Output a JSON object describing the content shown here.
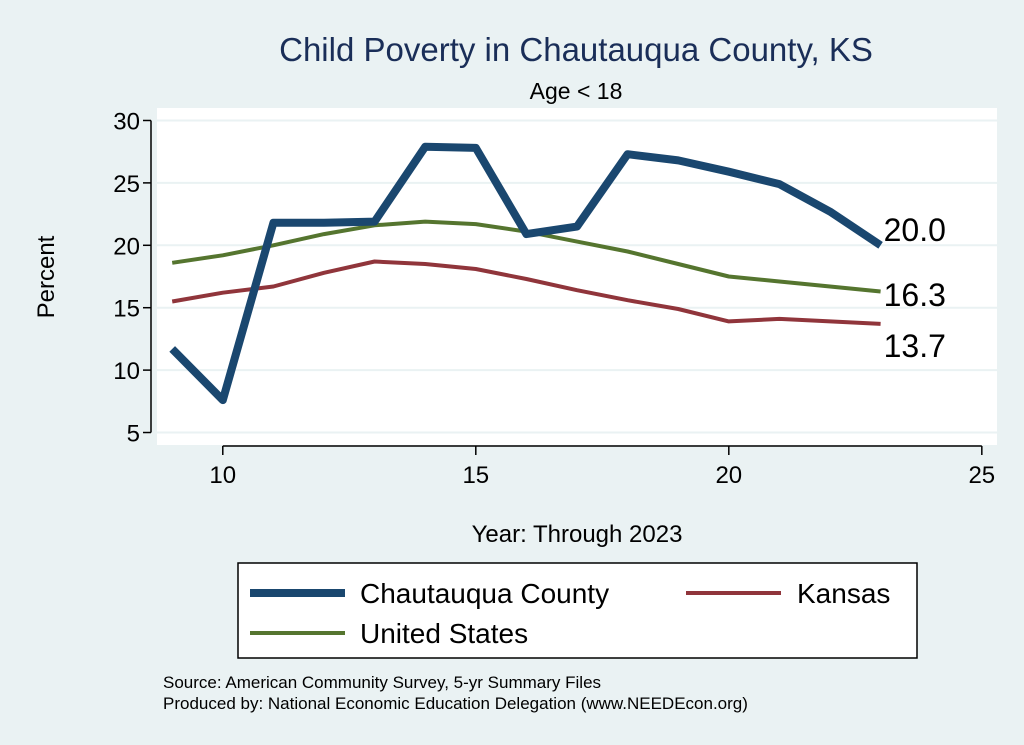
{
  "chart_data": {
    "type": "line",
    "title": "Child Poverty in Chautauqua County, KS",
    "subtitle": "Age < 18",
    "xlabel": "Year: Through 2023",
    "ylabel": "Percent",
    "xlim": [
      8.7,
      25.3
    ],
    "ylim": [
      4.0,
      31.0
    ],
    "xticks": [
      10,
      15,
      20,
      25
    ],
    "yticks": [
      5,
      10,
      15,
      20,
      25,
      30
    ],
    "grid": true,
    "series": [
      {
        "name": "Chautauqua County",
        "color": "#1a476f",
        "x": [
          9,
          10,
          11,
          12,
          13,
          14,
          15,
          16,
          17,
          18,
          19,
          20,
          21,
          22,
          23
        ],
        "y": [
          11.7,
          7.6,
          21.8,
          21.8,
          21.9,
          27.9,
          27.8,
          20.9,
          21.5,
          27.3,
          26.8,
          25.9,
          24.9,
          22.7,
          20.0
        ]
      },
      {
        "name": "Kansas",
        "color": "#90353b",
        "x": [
          9,
          10,
          11,
          12,
          13,
          14,
          15,
          16,
          17,
          18,
          19,
          20,
          21,
          22,
          23
        ],
        "y": [
          15.5,
          16.2,
          16.7,
          17.8,
          18.7,
          18.5,
          18.1,
          17.3,
          16.4,
          15.6,
          14.9,
          13.9,
          14.1,
          13.9,
          13.7
        ]
      },
      {
        "name": "United States",
        "color": "#55752f",
        "x": [
          9,
          10,
          11,
          12,
          13,
          14,
          15,
          16,
          17,
          18,
          19,
          20,
          21,
          22,
          23
        ],
        "y": [
          18.6,
          19.2,
          20.0,
          20.9,
          21.6,
          21.9,
          21.7,
          21.1,
          20.3,
          19.5,
          18.5,
          17.5,
          17.1,
          16.7,
          16.3
        ]
      }
    ],
    "end_labels": [
      {
        "series": "Chautauqua County",
        "text": "20.0"
      },
      {
        "series": "United States",
        "text": "16.3"
      },
      {
        "series": "Kansas",
        "text": "13.7"
      }
    ],
    "legend": {
      "position": "bottom",
      "items": [
        "Chautauqua County",
        "Kansas",
        "United States"
      ]
    }
  },
  "source_lines": [
    "Source: American Community Survey, 5-yr Summary Files",
    "Produced by: National Economic Education Delegation (www.NEEDEcon.org)"
  ]
}
